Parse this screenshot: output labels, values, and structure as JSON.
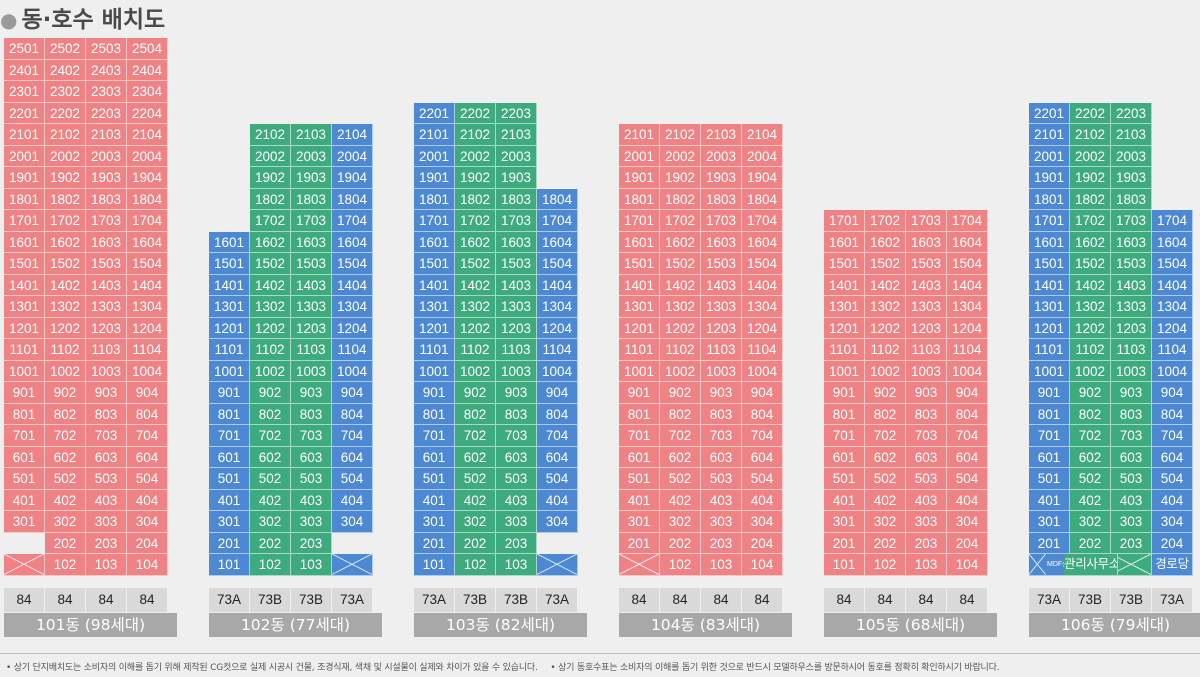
{
  "title": "동·호수 배치도",
  "footer": {
    "note1": "• 상기 단지배치도는 소비자의 이해를 돕기 위해 제작된 CG컷으로 실제 시공시 건물, 조경식재, 색채 및 시설물이 실제와 차이가 있을 수 있습니다.",
    "note2": "• 상기 동호수표는 소비자의 이해를 돕기 위한 것으로 반드시 모델하우스를 방문하시어 동호를 정확히 확인하시기 바랍니다."
  },
  "colors": {
    "red": "#ef8285",
    "blue": "#4d88d2",
    "green": "#3dab7e",
    "typebox": "#d9d9d9",
    "labelbar": "#a8a8a8"
  },
  "buildings": [
    {
      "label": "101동 (98세대)",
      "types": [
        "84",
        "84",
        "84",
        "84"
      ],
      "columns": [
        {
          "color": "red",
          "top": 25,
          "bottom": 3,
          "extras": [
            "X"
          ]
        },
        {
          "color": "red",
          "top": 25,
          "bottom": 1
        },
        {
          "color": "red",
          "top": 25,
          "bottom": 1
        },
        {
          "color": "red",
          "top": 25,
          "bottom": 1
        }
      ]
    },
    {
      "label": "102동 (77세대)",
      "types": [
        "73A",
        "73B",
        "73B",
        "73A"
      ],
      "columns": [
        {
          "color": "blue",
          "top": 16,
          "bottom": 1
        },
        {
          "color": "green",
          "top": 21,
          "bottom": 1
        },
        {
          "color": "green",
          "top": 21,
          "bottom": 1
        },
        {
          "color": "blue",
          "top": 21,
          "bottom": 3,
          "extras": [
            "X"
          ]
        }
      ]
    },
    {
      "label": "103동 (82세대)",
      "types": [
        "73A",
        "73B",
        "73B",
        "73A"
      ],
      "columns": [
        {
          "color": "blue",
          "top": 22,
          "bottom": 1
        },
        {
          "color": "green",
          "top": 22,
          "bottom": 1
        },
        {
          "color": "green",
          "top": 22,
          "bottom": 1
        },
        {
          "color": "blue",
          "top": 18,
          "bottom": 3,
          "extras": [
            "X"
          ]
        }
      ]
    },
    {
      "label": "104동 (83세대)",
      "types": [
        "84",
        "84",
        "84",
        "84"
      ],
      "columns": [
        {
          "color": "red",
          "top": 21,
          "bottom": 2,
          "extras": [
            "X"
          ]
        },
        {
          "color": "red",
          "top": 21,
          "bottom": 1
        },
        {
          "color": "red",
          "top": 21,
          "bottom": 1
        },
        {
          "color": "red",
          "top": 21,
          "bottom": 1
        }
      ]
    },
    {
      "label": "105동 (68세대)",
      "types": [
        "84",
        "84",
        "84",
        "84"
      ],
      "columns": [
        {
          "color": "red",
          "top": 17,
          "bottom": 1
        },
        {
          "color": "red",
          "top": 17,
          "bottom": 1
        },
        {
          "color": "red",
          "top": 17,
          "bottom": 1
        },
        {
          "color": "red",
          "top": 17,
          "bottom": 1
        }
      ]
    },
    {
      "label": "106동 (79세대)",
      "types": [
        "73A",
        "73B",
        "73B",
        "73A"
      ],
      "columns": [
        {
          "color": "blue",
          "top": 22,
          "bottom": 2,
          "extras": [
            "X|MDF실"
          ]
        },
        {
          "color": "green",
          "top": 22,
          "bottom": 2,
          "extras": [
            "관리사무소"
          ]
        },
        {
          "color": "green",
          "top": 22,
          "bottom": 2,
          "extras": [
            "X"
          ]
        },
        {
          "color": "blue",
          "top": 17,
          "bottom": 2,
          "extras": [
            "경로당"
          ]
        }
      ]
    }
  ]
}
